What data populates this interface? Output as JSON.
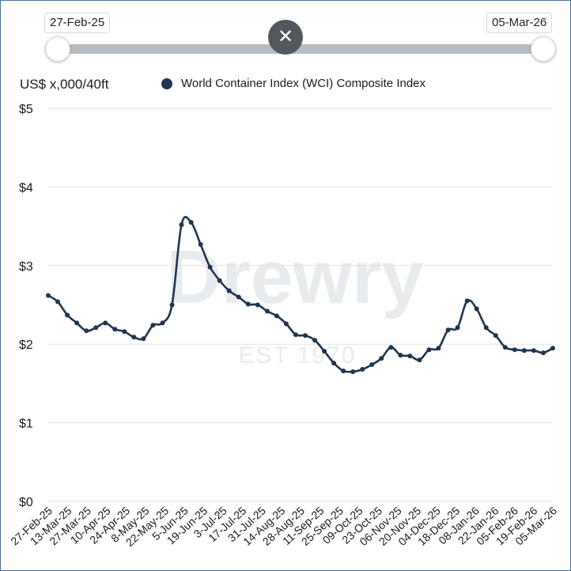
{
  "slider": {
    "start_label": "27-Feb-25",
    "end_label": "05-Mar-26",
    "close_symbol": "✕",
    "close_icon": "close-icon"
  },
  "unit_label": "US$ x,000/40ft",
  "colors": {
    "series": "#1f3550",
    "grid": "#e2e2e2",
    "watermark": "#e9ecef"
  },
  "watermark": {
    "name": "Drewry",
    "est": "EST 1970"
  },
  "chart_data": {
    "type": "line",
    "title": "",
    "xlabel": "",
    "ylabel": "US$ x,000/40ft",
    "ylim": [
      0,
      5
    ],
    "grid": true,
    "legend_position": "top",
    "y_ticks": [
      {
        "value": 0,
        "label": "$0"
      },
      {
        "value": 1,
        "label": "$1"
      },
      {
        "value": 2,
        "label": "$2"
      },
      {
        "value": 3,
        "label": "$3"
      },
      {
        "value": 4,
        "label": "$4"
      },
      {
        "value": 5,
        "label": "$5"
      }
    ],
    "tick_labels": [
      "27-Feb-25",
      "13-Mar-25",
      "27-Mar-25",
      "10-Apr-25",
      "24-Apr-25",
      "8-May-25",
      "22-May-25",
      "5-Jun-25",
      "19-Jun-25",
      "3-Jul-25",
      "17-Jul-25",
      "31-Jul-25",
      "14-Aug-25",
      "28-Aug-25",
      "11-Sep-25",
      "25-Sep-25",
      "09-Oct-25",
      "23-Oct-25",
      "06-Nov-25",
      "20-Nov-25",
      "04-Dec-25",
      "18-Dec-25",
      "08-Jan-26",
      "22-Jan-26",
      "05-Feb-26",
      "19-Feb-26",
      "05-Mar-26"
    ],
    "x_dates": [
      "2025-02-27",
      "2025-03-06",
      "2025-03-13",
      "2025-03-20",
      "2025-03-27",
      "2025-04-03",
      "2025-04-10",
      "2025-04-17",
      "2025-04-24",
      "2025-05-01",
      "2025-05-08",
      "2025-05-15",
      "2025-05-22",
      "2025-05-29",
      "2025-06-05",
      "2025-06-12",
      "2025-06-19",
      "2025-06-26",
      "2025-07-03",
      "2025-07-10",
      "2025-07-17",
      "2025-07-24",
      "2025-07-31",
      "2025-08-07",
      "2025-08-14",
      "2025-08-21",
      "2025-08-28",
      "2025-09-04",
      "2025-09-11",
      "2025-09-18",
      "2025-09-25",
      "2025-10-02",
      "2025-10-09",
      "2025-10-16",
      "2025-10-23",
      "2025-10-30",
      "2025-11-06",
      "2025-11-13",
      "2025-11-20",
      "2025-11-27",
      "2025-12-04",
      "2025-12-11",
      "2025-12-18",
      "2025-12-25",
      "2026-01-01",
      "2026-01-08",
      "2026-01-15",
      "2026-01-22",
      "2026-01-29",
      "2026-02-05",
      "2026-02-12",
      "2026-02-19",
      "2026-02-26",
      "2026-03-05"
    ],
    "series": [
      {
        "name": "World Container Index (WCI) Composite Index",
        "values": [
          2.62,
          2.54,
          2.37,
          2.27,
          2.17,
          2.21,
          2.27,
          2.19,
          2.16,
          2.09,
          2.07,
          2.24,
          2.27,
          2.5,
          3.52,
          3.55,
          3.27,
          2.98,
          2.81,
          2.68,
          2.6,
          2.51,
          2.5,
          2.42,
          2.36,
          2.26,
          2.12,
          2.11,
          2.05,
          1.91,
          1.76,
          1.66,
          1.65,
          1.68,
          1.74,
          1.82,
          1.96,
          1.86,
          1.85,
          1.8,
          1.93,
          1.95,
          2.18,
          2.21,
          2.55,
          2.45,
          2.21,
          2.11,
          1.96,
          1.93,
          1.92,
          1.92,
          1.89,
          1.95
        ]
      }
    ]
  }
}
